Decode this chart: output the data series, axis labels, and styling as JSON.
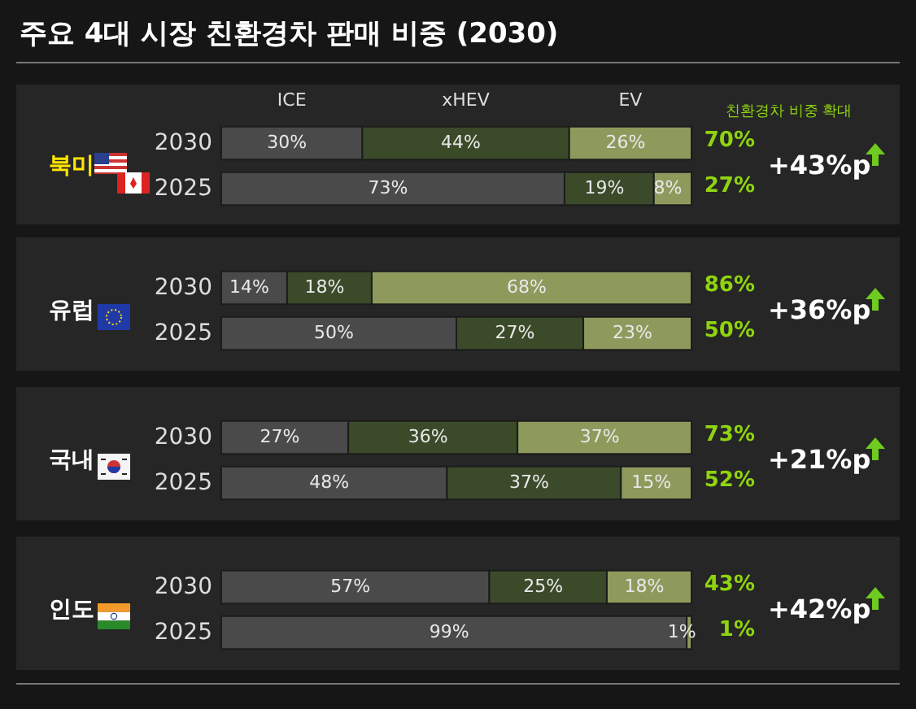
{
  "chart_data": [
    {
      "type": "bar",
      "title": "주요 4대 시장 친환경차 판매 비중 (2030)",
      "ylabel": "북미",
      "orientation": "horizontal",
      "stacked": true,
      "tick_labels": "y",
      "categories": [
        "2030",
        "2025"
      ],
      "series": [
        {
          "name": "ICE",
          "color": "#4a4a4a",
          "values": [
            30,
            73
          ],
          "value_labels": [
            "30%",
            "73%"
          ]
        },
        {
          "name": "xHEV",
          "color": "#3b4a29",
          "values": [
            44,
            19
          ],
          "value_labels": [
            "44%",
            "19%"
          ]
        },
        {
          "name": "EV",
          "color": "#8e9a5c",
          "values": [
            26,
            8
          ],
          "value_labels": [
            "26%",
            "8%"
          ]
        }
      ],
      "annotations": [
        "친환경차 비중 확대",
        "70%",
        "27%",
        "+43%p"
      ]
    },
    {
      "type": "bar",
      "ylabel": "유럽",
      "orientation": "horizontal",
      "stacked": true,
      "tick_labels": "y",
      "categories": [
        "2030",
        "2025"
      ],
      "series": [
        {
          "color": "#4a4a4a",
          "values": [
            14,
            50
          ],
          "value_labels": [
            "14%",
            "50%"
          ]
        },
        {
          "color": "#3b4a29",
          "values": [
            18,
            27
          ],
          "value_labels": [
            "18%",
            "27%"
          ]
        },
        {
          "color": "#8e9a5c",
          "values": [
            68,
            23
          ],
          "value_labels": [
            "68%",
            "23%"
          ]
        }
      ],
      "annotations": [
        "86%",
        "50%",
        "+36%p"
      ]
    },
    {
      "type": "bar",
      "ylabel": "국내",
      "orientation": "horizontal",
      "stacked": true,
      "tick_labels": "y",
      "categories": [
        "2030",
        "2025"
      ],
      "series": [
        {
          "color": "#4a4a4a",
          "values": [
            27,
            48
          ],
          "value_labels": [
            "27%",
            "48%"
          ]
        },
        {
          "color": "#3b4a29",
          "values": [
            36,
            37
          ],
          "value_labels": [
            "36%",
            "37%"
          ]
        },
        {
          "color": "#8e9a5c",
          "values": [
            37,
            15
          ],
          "value_labels": [
            "37%",
            "15%"
          ]
        }
      ],
      "annotations": [
        "73%",
        "52%",
        "+21%p"
      ]
    },
    {
      "type": "bar",
      "ylabel": "인도",
      "orientation": "horizontal",
      "stacked": true,
      "tick_labels": "y",
      "categories": [
        "2030",
        "2025"
      ],
      "series": [
        {
          "color": "#4a4a4a",
          "values": [
            57,
            99
          ],
          "value_labels": [
            "57%",
            "99%"
          ]
        },
        {
          "color": "#3b4a29",
          "values": [
            25,
            null
          ],
          "value_labels": [
            "25%",
            null
          ]
        },
        {
          "color": "#8e9a5c",
          "values": [
            18,
            1
          ],
          "value_labels": [
            "18%",
            "1%"
          ]
        }
      ],
      "annotations": [
        "43%",
        "1%",
        "+42%p"
      ]
    }
  ]
}
